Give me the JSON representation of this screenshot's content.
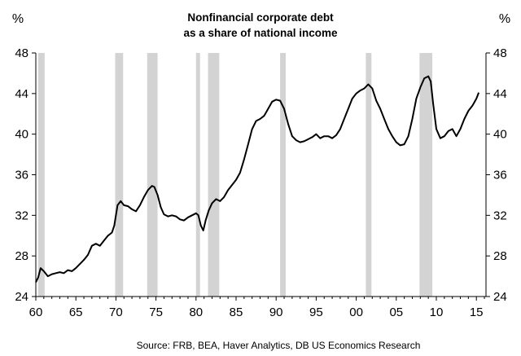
{
  "chart_data": {
    "type": "line",
    "title_lines": [
      "Nonfinancial corporate debt",
      "as a share of national income"
    ],
    "y_unit_left": "%",
    "y_unit_right": "%",
    "source": "Source: FRB, BEA,  Haver  Analytics, DB US Economics Research",
    "xlim": [
      1960,
      2016.2
    ],
    "ylim": [
      24,
      48
    ],
    "x_ticks": [
      1960,
      1965,
      1970,
      1975,
      1980,
      1985,
      1990,
      1995,
      2000,
      2005,
      2010,
      2015
    ],
    "x_tick_labels": [
      "60",
      "65",
      "70",
      "75",
      "80",
      "85",
      "90",
      "95",
      "00",
      "05",
      "10",
      "15"
    ],
    "y_ticks": [
      24,
      28,
      32,
      36,
      40,
      44,
      48
    ],
    "y_tick_labels": [
      "24",
      "28",
      "32",
      "36",
      "40",
      "44",
      "48"
    ],
    "grid": false,
    "colors": {
      "line": "#000000",
      "recession": "#d3d3d3"
    },
    "recessions": [
      [
        1960.3,
        1961.1
      ],
      [
        1969.9,
        1970.9
      ],
      [
        1973.9,
        1975.2
      ],
      [
        1980.0,
        1980.5
      ],
      [
        1981.5,
        1982.9
      ],
      [
        1990.5,
        1991.2
      ],
      [
        2001.2,
        2001.9
      ],
      [
        2007.9,
        2009.5
      ]
    ],
    "series": [
      {
        "x": [
          1960.0,
          1960.3,
          1960.6,
          1961.0,
          1961.5,
          1962.0,
          1962.5,
          1963.0,
          1963.5,
          1964.0,
          1964.5,
          1965.0,
          1965.5,
          1966.0,
          1966.5,
          1967.0,
          1967.5,
          1968.0,
          1968.5,
          1969.0,
          1969.5,
          1969.8,
          1970.2,
          1970.6,
          1971.0,
          1971.5,
          1972.0,
          1972.5,
          1973.0,
          1973.5,
          1974.0,
          1974.5,
          1974.8,
          1975.2,
          1975.6,
          1976.0,
          1976.5,
          1977.0,
          1977.5,
          1978.0,
          1978.5,
          1979.0,
          1979.5,
          1980.0,
          1980.3,
          1980.6,
          1980.9,
          1981.2,
          1981.6,
          1982.0,
          1982.5,
          1983.0,
          1983.5,
          1984.0,
          1984.5,
          1985.0,
          1985.5,
          1986.0,
          1986.5,
          1987.0,
          1987.5,
          1988.0,
          1988.5,
          1989.0,
          1989.5,
          1990.0,
          1990.5,
          1991.0,
          1991.5,
          1992.0,
          1992.5,
          1993.0,
          1993.5,
          1994.0,
          1994.5,
          1995.0,
          1995.5,
          1996.0,
          1996.5,
          1997.0,
          1997.5,
          1998.0,
          1998.5,
          1999.0,
          1999.5,
          2000.0,
          2000.5,
          2001.0,
          2001.5,
          2002.0,
          2002.5,
          2003.0,
          2003.5,
          2004.0,
          2004.5,
          2005.0,
          2005.5,
          2006.0,
          2006.5,
          2007.0,
          2007.5,
          2008.0,
          2008.5,
          2009.0,
          2009.3,
          2009.6,
          2010.0,
          2010.5,
          2011.0,
          2011.5,
          2012.0,
          2012.5,
          2013.0,
          2013.5,
          2014.0,
          2014.5,
          2015.0,
          2015.3
        ],
        "y": [
          25.4,
          25.9,
          26.8,
          26.5,
          26.0,
          26.2,
          26.3,
          26.4,
          26.3,
          26.6,
          26.5,
          26.8,
          27.2,
          27.6,
          28.1,
          29.0,
          29.2,
          29.0,
          29.5,
          30.0,
          30.3,
          31.0,
          33.0,
          33.4,
          33.0,
          32.9,
          32.6,
          32.4,
          33.0,
          33.8,
          34.5,
          34.9,
          34.8,
          34.0,
          32.8,
          32.1,
          31.9,
          32.0,
          31.9,
          31.6,
          31.5,
          31.8,
          32.0,
          32.2,
          32.0,
          31.0,
          30.5,
          31.5,
          32.5,
          33.2,
          33.6,
          33.4,
          33.8,
          34.5,
          35.0,
          35.5,
          36.2,
          37.5,
          39.0,
          40.5,
          41.3,
          41.5,
          41.8,
          42.5,
          43.2,
          43.4,
          43.3,
          42.5,
          41.0,
          39.8,
          39.4,
          39.2,
          39.3,
          39.5,
          39.7,
          40.0,
          39.6,
          39.8,
          39.8,
          39.6,
          39.9,
          40.5,
          41.5,
          42.5,
          43.5,
          44.0,
          44.3,
          44.5,
          44.9,
          44.5,
          43.3,
          42.5,
          41.5,
          40.5,
          39.8,
          39.2,
          38.9,
          39.0,
          39.8,
          41.5,
          43.5,
          44.6,
          45.5,
          45.7,
          45.2,
          43.0,
          40.5,
          39.6,
          39.8,
          40.3,
          40.5,
          39.8,
          40.5,
          41.5,
          42.3,
          42.8,
          43.5,
          44.1
        ]
      }
    ]
  }
}
